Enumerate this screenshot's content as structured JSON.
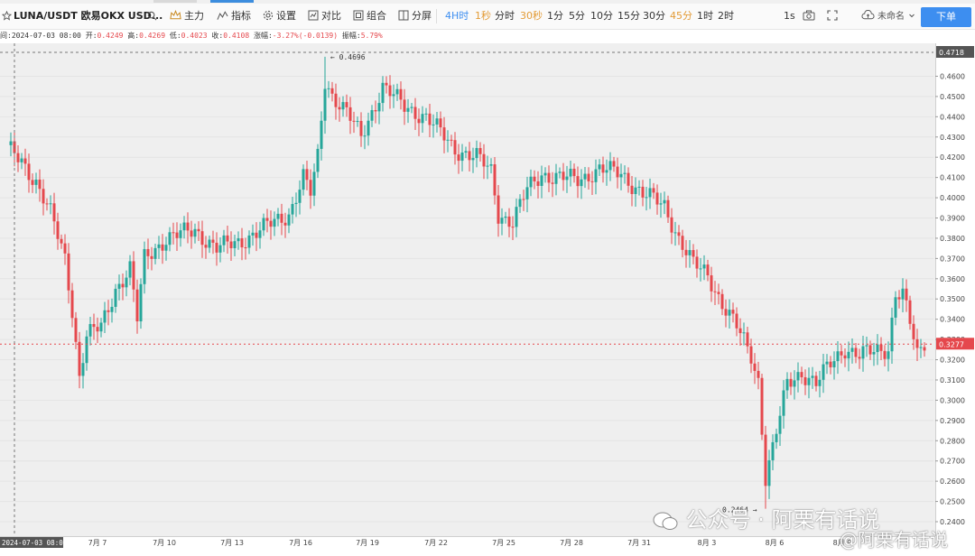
{
  "toolbar": {
    "symbol": "LUNA/USDT 欧易OKX USD...",
    "main_label": "主力",
    "indicators_label": "指标",
    "settings_label": "设置",
    "compare_label": "对比",
    "combine_label": "组合",
    "split_label": "分屏",
    "intervals": [
      {
        "label": "4H时",
        "state": "active"
      },
      {
        "label": "1秒",
        "state": "orange"
      },
      {
        "label": "分时",
        "state": "normal"
      },
      {
        "label": "30秒",
        "state": "orange"
      },
      {
        "label": "1分",
        "state": "normal"
      },
      {
        "label": "5分",
        "state": "normal"
      },
      {
        "label": "10分",
        "state": "normal"
      },
      {
        "label": "15分",
        "state": "normal"
      },
      {
        "label": "30分",
        "state": "normal"
      },
      {
        "label": "45分",
        "state": "orange"
      },
      {
        "label": "1时",
        "state": "normal"
      },
      {
        "label": "2时",
        "state": "normal"
      }
    ],
    "replay_label": "1s",
    "layout_name": "未命名",
    "order_button": "下单"
  },
  "ohlc_bar": {
    "time": "间:2024-07-03 08:00",
    "open_label": "开:",
    "open": "0.4249",
    "high_label": "高:",
    "high": "0.4269",
    "low_label": "低:",
    "low": "0.4023",
    "close_label": "收:",
    "close": "0.4108",
    "change_label": "涨幅:",
    "change": "-3.27%(-0.0139)",
    "amplitude_label": "振幅:",
    "amplitude": "5.79%"
  },
  "colors": {
    "up": "#26a69a",
    "down": "#e5484d",
    "accent": "#3d8ef0",
    "last_price_tag": "#e5484d"
  },
  "chart_data": {
    "type": "candlestick",
    "symbol": "LUNA/USDT",
    "interval": "4H",
    "ylim": [
      0.24,
      0.4718
    ],
    "price_ticks": [
      "0.4600",
      "0.4500",
      "0.4400",
      "0.4300",
      "0.4200",
      "0.4100",
      "0.4000",
      "0.3900",
      "0.3800",
      "0.3700",
      "0.3600",
      "0.3500",
      "0.3400",
      "0.3300",
      "0.3200",
      "0.3100",
      "0.3000",
      "0.2900",
      "0.2800",
      "0.2700",
      "0.2600",
      "0.2500",
      "0.2400"
    ],
    "date_ticks": [
      "7月 7",
      "7月 10",
      "7月 13",
      "7月 16",
      "7月 19",
      "7月 22",
      "7月 25",
      "7月 28",
      "7月 31",
      "8月 3",
      "8月 6",
      "8月 9"
    ],
    "crosshair_time": "2024-07-03 08:00:00",
    "crosshair_price": "0.4718",
    "last_price": "0.3277",
    "annotations": [
      {
        "text": "← 0.4696",
        "price": 0.4696
      },
      {
        "text": "0.2464 →",
        "price": 0.2464
      }
    ],
    "price_path": [
      [
        0,
        0.424
      ],
      [
        4,
        0.418
      ],
      [
        8,
        0.408
      ],
      [
        12,
        0.392
      ],
      [
        16,
        0.37
      ],
      [
        18,
        0.345
      ],
      [
        20,
        0.312
      ],
      [
        22,
        0.332
      ],
      [
        26,
        0.336
      ],
      [
        30,
        0.355
      ],
      [
        34,
        0.365
      ],
      [
        36,
        0.34
      ],
      [
        38,
        0.37
      ],
      [
        44,
        0.38
      ],
      [
        52,
        0.384
      ],
      [
        58,
        0.375
      ],
      [
        64,
        0.378
      ],
      [
        72,
        0.386
      ],
      [
        78,
        0.392
      ],
      [
        82,
        0.41
      ],
      [
        84,
        0.402
      ],
      [
        86,
        0.42
      ],
      [
        88,
        0.458
      ],
      [
        90,
        0.451
      ],
      [
        94,
        0.442
      ],
      [
        98,
        0.43
      ],
      [
        104,
        0.455
      ],
      [
        110,
        0.445
      ],
      [
        116,
        0.44
      ],
      [
        120,
        0.432
      ],
      [
        124,
        0.424
      ],
      [
        130,
        0.42
      ],
      [
        134,
        0.413
      ],
      [
        136,
        0.392
      ],
      [
        140,
        0.388
      ],
      [
        144,
        0.404
      ],
      [
        148,
        0.412
      ],
      [
        152,
        0.41
      ],
      [
        158,
        0.409
      ],
      [
        164,
        0.414
      ],
      [
        170,
        0.412
      ],
      [
        176,
        0.402
      ],
      [
        182,
        0.396
      ],
      [
        186,
        0.38
      ],
      [
        190,
        0.367
      ],
      [
        194,
        0.362
      ],
      [
        198,
        0.348
      ],
      [
        202,
        0.336
      ],
      [
        206,
        0.322
      ],
      [
        208,
        0.31
      ],
      [
        210,
        0.262
      ],
      [
        212,
        0.276
      ],
      [
        216,
        0.308
      ],
      [
        220,
        0.314
      ],
      [
        224,
        0.308
      ],
      [
        228,
        0.318
      ],
      [
        232,
        0.326
      ],
      [
        236,
        0.322
      ],
      [
        240,
        0.324
      ],
      [
        244,
        0.326
      ],
      [
        246,
        0.353
      ],
      [
        248,
        0.352
      ],
      [
        250,
        0.338
      ],
      [
        252,
        0.322
      ],
      [
        254,
        0.329
      ]
    ]
  },
  "watermark": {
    "line1": "公众号 · 阿栗有话说",
    "line2": "@阿栗有话说"
  }
}
